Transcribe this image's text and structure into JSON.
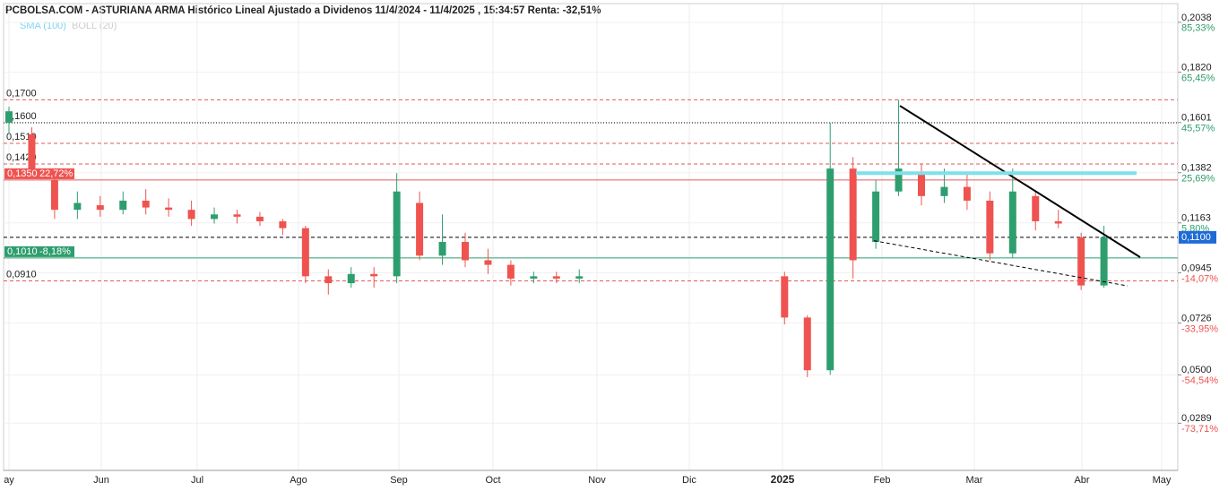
{
  "chart_data": {
    "type": "candlestick",
    "title": "PCBOLSA.COM - ASTURIANA ARMA Histórico Lineal Ajustado a Dividenos 11/4/2024 - 11/4/2025 , 15:34:57 Renta: -32,51%",
    "indicators": [
      "SMA (100)",
      "BOLL (20)"
    ],
    "up_color": "#2e9e6e",
    "down_color": "#ef5350",
    "categories": [
      null,
      null,
      null,
      null,
      null,
      null,
      null,
      null,
      null,
      null,
      null,
      null,
      null,
      null,
      null,
      null,
      null,
      null,
      null,
      null,
      null,
      null,
      null,
      null,
      null,
      null,
      null,
      null,
      null,
      null,
      null,
      null,
      null,
      null,
      null,
      null,
      null,
      null,
      null,
      null,
      null,
      null,
      null,
      null,
      null,
      null,
      null,
      null,
      null
    ],
    "open": [
      0.16,
      0.155,
      0.135,
      0.122,
      0.124,
      0.122,
      0.126,
      0.123,
      0.122,
      0.118,
      0.12,
      0.119,
      0.117,
      0.114,
      0.093,
      0.09,
      0.094,
      0.093,
      0.125,
      0.102,
      0.108,
      0.1,
      0.098,
      0.092,
      0.093,
      0.092,
      null,
      null,
      null,
      null,
      null,
      null,
      null,
      null,
      0.093,
      0.075,
      0.052,
      0.14,
      0.108,
      0.13,
      0.138,
      0.128,
      0.132,
      0.126,
      0.103,
      0.128,
      0.117,
      0.11,
      0.089
    ],
    "high": [
      0.167,
      0.158,
      0.137,
      0.13,
      0.128,
      0.13,
      0.131,
      0.127,
      0.126,
      0.123,
      0.122,
      0.121,
      0.118,
      0.115,
      0.096,
      0.097,
      0.097,
      0.138,
      0.13,
      0.12,
      0.112,
      0.105,
      0.1,
      0.095,
      0.095,
      0.096,
      null,
      null,
      null,
      null,
      null,
      null,
      null,
      null,
      0.095,
      0.076,
      0.16,
      0.145,
      0.135,
      0.17,
      0.142,
      0.14,
      0.138,
      0.13,
      0.14,
      0.13,
      0.122,
      0.112,
      0.115
    ],
    "low": [
      0.155,
      0.138,
      0.118,
      0.118,
      0.119,
      0.12,
      0.12,
      0.119,
      0.115,
      0.116,
      0.116,
      0.115,
      0.111,
      0.09,
      0.085,
      0.088,
      0.088,
      0.09,
      0.1,
      0.098,
      0.097,
      0.094,
      0.089,
      0.09,
      0.09,
      0.09,
      null,
      null,
      null,
      null,
      null,
      null,
      null,
      null,
      0.072,
      0.049,
      0.05,
      0.092,
      0.105,
      0.128,
      0.124,
      0.125,
      0.122,
      0.1,
      0.101,
      0.113,
      0.114,
      0.087,
      0.088
    ],
    "close": [
      0.165,
      0.14,
      0.122,
      0.125,
      0.122,
      0.126,
      0.123,
      0.122,
      0.118,
      0.12,
      0.119,
      0.117,
      0.114,
      0.093,
      0.09,
      0.094,
      0.093,
      0.13,
      0.102,
      0.108,
      0.1,
      0.098,
      0.092,
      0.093,
      0.092,
      0.093,
      null,
      null,
      null,
      null,
      null,
      null,
      null,
      null,
      0.075,
      0.052,
      0.14,
      0.1,
      0.13,
      0.14,
      0.128,
      0.132,
      0.126,
      0.103,
      0.13,
      0.117,
      0.116,
      0.089,
      0.11
    ],
    "ylim": [
      0.0083,
      0.2116
    ],
    "yticks": [
      {
        "value": 0.2038,
        "label": "0,2038"
      },
      {
        "value": 0.182,
        "label": "0,1820"
      },
      {
        "value": 0.1601,
        "label": "0,1601"
      },
      {
        "value": 0.1382,
        "label": "0,1382"
      },
      {
        "value": 0.1163,
        "label": "0,1163"
      },
      {
        "value": 0.0945,
        "label": "0,0945"
      },
      {
        "value": 0.0726,
        "label": "0,0726"
      },
      {
        "value": 0.05,
        "label": "0,0500"
      },
      {
        "value": 0.0289,
        "label": "0,0289"
      }
    ],
    "y2lim": [
      -92.45,
      92.36
    ],
    "y2ticks": [
      {
        "value": 85.33,
        "label": "85,33%"
      },
      {
        "value": 65.45,
        "label": "65,45%"
      },
      {
        "value": 45.57,
        "label": "45,57%"
      },
      {
        "value": 25.69,
        "label": "25,69%"
      },
      {
        "value": 5.8,
        "label": "5,80%"
      },
      {
        "value": -14.07,
        "label": "-14,07%"
      },
      {
        "value": -33.95,
        "label": "-33,95%"
      },
      {
        "value": -54.54,
        "label": "-54,54%"
      },
      {
        "value": -73.71,
        "label": "-73,71%"
      }
    ],
    "xticks": [
      "ay",
      "Jun",
      "Jul",
      "Ago",
      "Sep",
      "Oct",
      "Nov",
      "Dic",
      "2025",
      "Feb",
      "Mar",
      "Abr",
      "May"
    ],
    "last_price": {
      "value": 0.11,
      "label": "0,1100"
    },
    "levels": [
      {
        "value": 0.17,
        "label": "0,1700",
        "style": "red-dashed"
      },
      {
        "value": 0.16,
        "label": "0,1600",
        "style": "black-dotted"
      },
      {
        "value": 0.151,
        "label": "0,1510",
        "style": "red-dashed"
      },
      {
        "value": 0.142,
        "label": "0,1420",
        "style": "red-dashed"
      },
      {
        "value": 0.135,
        "label": "0,1350",
        "pct": {
          "value": 22.72,
          "label": "22,72%"
        },
        "style": "red-solid"
      },
      {
        "value": 0.101,
        "label": "0,1010",
        "pct": {
          "value": -8.18,
          "label": "-8,18%"
        },
        "style": "green-solid"
      },
      {
        "value": 0.091,
        "label": "0,0910",
        "style": "red-dashed"
      }
    ],
    "trendlines": [
      {
        "start": 0.1674,
        "end": 0.1013,
        "style": "black-solid"
      },
      {
        "start": 0.138,
        "end": 0.138,
        "style": "cyan-solid"
      },
      {
        "start": 0.1085,
        "end": 0.0888,
        "style": "black-dashed"
      }
    ]
  }
}
